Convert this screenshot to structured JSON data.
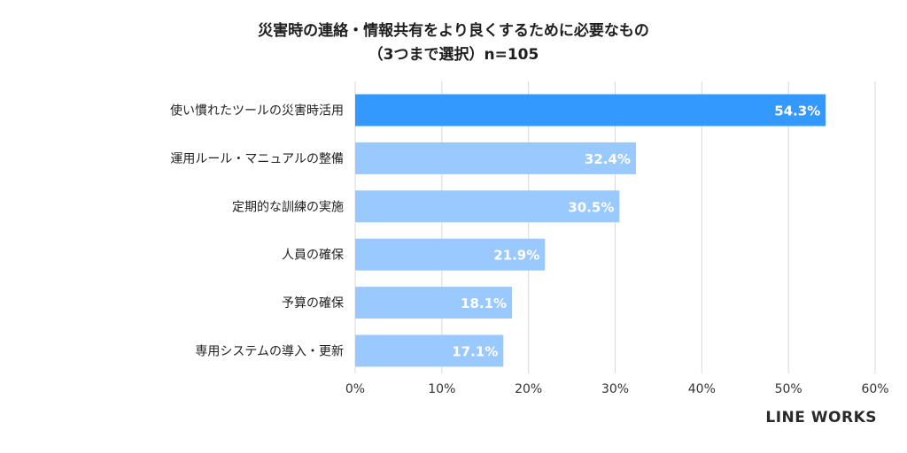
{
  "header": {
    "title_line1": "災害時の連絡・情報共有をより良くするために必要なもの",
    "title_line2": "（3つまで選択）n=105"
  },
  "chart_data": {
    "type": "bar",
    "orientation": "horizontal",
    "title": "災害時の連絡・情報共有をより良くするために必要なもの（3つまで選択）n=105",
    "categories": [
      "使い慣れたツールの災害時活用",
      "運用ルール・マニュアルの整備",
      "定期的な訓練の実施",
      "人員の確保",
      "予算の確保",
      "専用システムの導入・更新"
    ],
    "values": [
      54.3,
      32.4,
      30.5,
      21.9,
      18.1,
      17.1
    ],
    "value_labels": [
      "54.3%",
      "32.4%",
      "30.5%",
      "21.9%",
      "18.1%",
      "17.1%"
    ],
    "x_ticks": [
      "0%",
      "10%",
      "20%",
      "30%",
      "40%",
      "50%",
      "60%"
    ],
    "xlim": [
      0,
      60
    ],
    "grid": true,
    "colors": {
      "highlight": "#3399ff",
      "bar": "#99c9ff",
      "grid": "#d9d9d9",
      "label": "#ffffff"
    }
  },
  "brand": {
    "logo_text": "LINE WORKS"
  }
}
